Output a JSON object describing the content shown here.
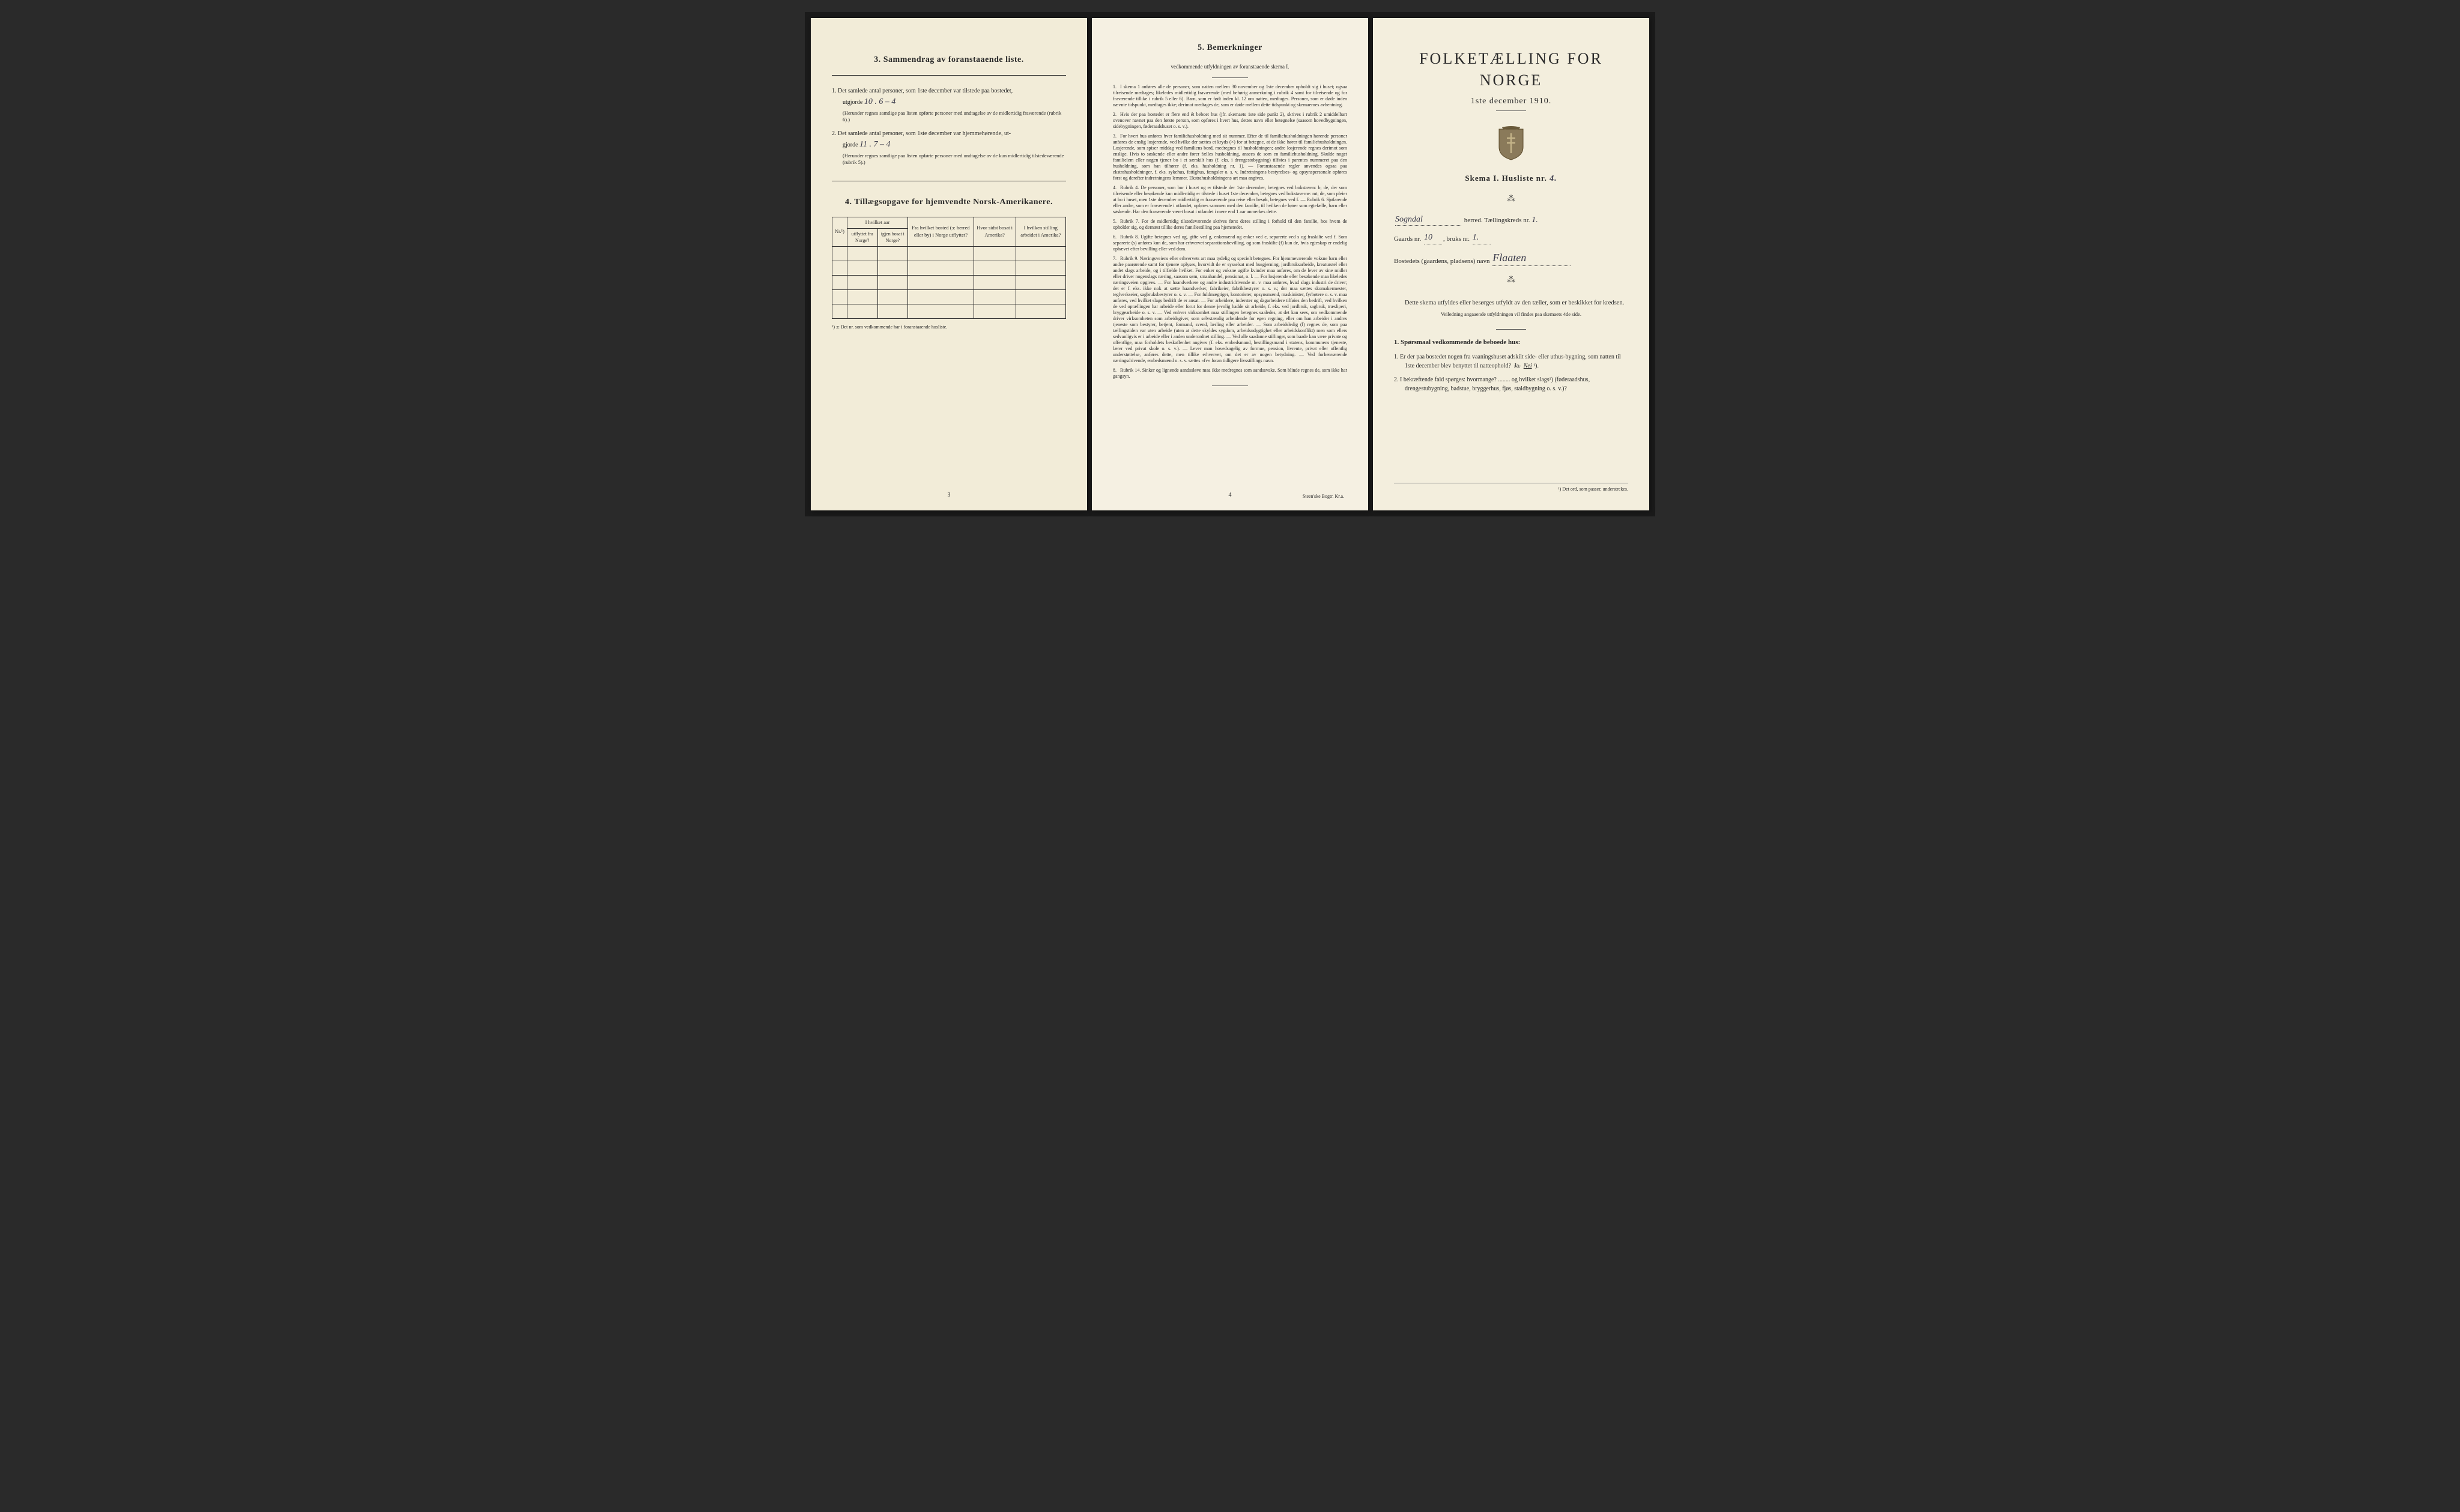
{
  "colors": {
    "paper_left": "#f2ecd8",
    "paper_center": "#f5f0e2",
    "paper_right": "#f3eedd",
    "ink": "#2a2a2a",
    "handwriting": "#3a3a4a",
    "background": "#2a2a2a"
  },
  "typography": {
    "body_font": "Georgia, Times New Roman, serif",
    "handwritten_font": "Brush Script MT, cursive",
    "main_title_size_pt": 26,
    "section_title_size_pt": 14,
    "body_size_pt": 10,
    "dense_size_pt": 8
  },
  "left": {
    "section3": {
      "title": "3.   Sammendrag av foranstaaende liste.",
      "item1_pre": "1.  Det samlede antal personer, som 1ste december var tilstede paa bostedet,",
      "item1_label": "utgjorde",
      "item1_value": "10 . 6 – 4",
      "item1_note": "(Herunder regnes samtlige paa listen opførte personer med undtagelse av de midlertidig fraværende (rubrik 6).)",
      "item2_pre": "2.  Det samlede antal personer, som 1ste december var hjemmehørende, ut-",
      "item2_label": "gjorde",
      "item2_value": "11 . 7 – 4",
      "item2_note": "(Herunder regnes samtlige paa listen opførte personer med undtagelse av de kun midlertidig tilstedeværende (rubrik 5).)"
    },
    "section4": {
      "title": "4.   Tillægsopgave for hjemvendte Norsk-Amerikanere.",
      "headers": {
        "col0": "Nr.¹)",
        "aar_group": "I hvilket aar",
        "aar_a": "utflyttet fra Norge?",
        "aar_b": "igjen bosat i Norge?",
        "col3": "Fra hvilket bosted (ɔ: herred eller by) i Norge utflyttet?",
        "col4": "Hvor sidst bosat i Amerika?",
        "col5": "I hvilken stilling arbeidet i Amerika?"
      },
      "rows": 5,
      "footnote": "¹) ɔ: Det nr. som vedkommende har i foranstaaende husliste."
    },
    "page_number": "3"
  },
  "center": {
    "title": "5.   Bemerkninger",
    "subtitle": "vedkommende utfyldningen av foranstaaende skema I.",
    "items": [
      "I skema 1 anføres alle de personer, som natten mellem 30 november og 1ste december opholdt sig i huset; ogsaa tilreisende medtages; likeledes midlertidig fraværende (med behørig anmerkning i rubrik 4 samt for tilreisende og for fraværende tillike i rubrik 5 eller 6). Barn, som er født inden kl. 12 om natten, medtages. Personer, som er døde inden nævnte tidspunkt, medtages ikke; derimot medtages de, som er døde mellem dette tidspunkt og skemaernes avhentning.",
      "Hvis der paa bostedet er flere end ét beboet hus (jfr. skemaets 1ste side punkt 2), skrives i rubrik 2 umiddelbart ovenover navnet paa den første person, som opføres i hvert hus, dettes navn eller betegnelse (saasom hovedbygningen, sidebygningen, føderaadshuset o. s. v.).",
      "For hvert hus anføres hver familiehusholdning med sit nummer. Efter de til familiehusholdningen hørende personer anføres de enslig losjerende, ved hvilke der sættes et kryds (×) for at betegne, at de ikke hører til familiehusholdningen. Losjerende, som spiser middag ved familiens bord, medregnes til husholdningen; andre losjerende regnes derimot som enslige. Hvis to søskende eller andre fører fælles husholdning, ansees de som en familiehusholdning. Skulde noget familielem eller nogen tjener bo i et særskilt hus (f. eks. i drengestubygning) tilføies i parentes nummeret paa den husholdning, som han tilhører (f. eks. husholdning nr. 1). — Foranstaaende regler anvendes ogsaa paa ekstrahusholdninger, f. eks. sykehus, fattighus, fængsler o. s. v. Indretningens bestyrelses- og opsynspersonale opføres først og derefter indretningens lemmer. Ekstrahusholdningens art maa angives.",
      "Rubrik 4. De personer, som bor i huset og er tilstede der 1ste december, betegnes ved bokstaven: b; de, der som tilreisende eller besøkende kun midlertidig er tilstede i huset 1ste december, betegnes ved bokstaverne: mt; de, som pleier at bo i huset, men 1ste december midlertidig er fraværende paa reise eller besøk, betegnes ved f. — Rubrik 6. Sjøfarende eller andre, som er fraværende i utlandet, opføres sammen med den familie, til hvilken de hører som egtefælle, barn eller søskende. Har den fraværende været bosat i utlandet i mere end 1 aar anmerkes dette.",
      "Rubrik 7. For de midlertidig tilstedeværende skrives først deres stilling i forhold til den familie, hos hvem de opholder sig, og dernæst tillike deres familiestilling paa hjemstedet.",
      "Rubrik 8. Ugifte betegnes ved ug, gifte ved g, enkemænd og enker ved e, separerte ved s og fraskilte ved f. Som separerte (s) anføres kun de, som har erhvervet separationsbevilling, og som fraskilte (f) kun de, hvis egteskap er endelig ophævet efter bevilling eller ved dom.",
      "Rubrik 9. Næringsveiens eller erhvervets art maa tydelig og specielt betegnes. For hjemmeværende voksne barn eller andre paarørende samt for tjenere oplyses, hvorvidt de er sysselsat med husgjerning, jordbruksarbeide, kreaturstel eller andet slags arbeide, og i tilfælde hvilket. For enker og voksne ugifte kvinder maa anføres, om de lever av sine midler eller driver nogenslags næring, saasom søm, smaahandel, pensionat, o. l. — For losjerende eller besøkende maa likeledes næringsveien opgives. — For haandverkere og andre industridrivende m. v. maa anføres, hvad slags industri de driver; det er f. eks. ikke nok at sætte haandverker, fabrikeier, fabrikbestyrer o. s. v.; der maa sættes skomakermester, teglverkseier, sagbruksbestyrer o. s. v. — For fuldmægtiger, kontorister, opsynsmænd, maskinister, fyrbøtere o. s. v. maa anføres, ved hvilket slags bedrift de er ansat. — For arbeidere, inderster og dagarbeidere tilføies den bedrift, ved hvilken de ved optællingen har arbeide eller forut for denne jevnlig hadde sit arbeide, f. eks. ved jordbruk, sagbruk, træsliperi, bryggearbeide o. s. v. — Ved enhver virksomhet maa stillingen betegnes saaledes, at det kan sees, om vedkommende driver virksomheten som arbeidsgiver, som selvstændig arbeidende for egen regning, eller om han arbeider i andres tjeneste som bestyrer, betjent, formand, svend, lærling eller arbeider. — Som arbeidsledig (l) regnes de, som paa tællingstiden var uten arbeide (uten at dette skyldes sygdom, arbeidsudygtighet eller arbeidskonflikt) men som ellers sedvanligvis er i arbeide eller i anden underordnet stilling. — Ved alle saadanne stillinger, som baade kan være private og offentlige, maa forholdets beskaffenhet angives (f. eks. embedsmand, bestillingsmand i statens, kommunens tjeneste, lærer ved privat skole o. s. v.). — Lever man hovedsagelig av formue, pension, livrente, privat eller offentlig understøttelse, anføres dette, men tillike erhvervet, om det er av nogen betydning. — Ved forhenværende næringsdrivende, embedsmænd o. s. v. sættes «fv» foran tidligere livsstillings navn.",
      "Rubrik 14. Sinker og lignende aandssløve maa ikke medregnes som aandssvake. Som blinde regnes de, som ikke har gangsyn."
    ],
    "page_number": "4",
    "printer": "Steen'ske Bogtr.  Kr.a."
  },
  "right": {
    "main_title": "FOLKETÆLLING FOR NORGE",
    "date": "1ste december 1910.",
    "skema_label": "Skema I.   Husliste nr.",
    "skema_nr": "4.",
    "herred_label": "herred.   Tællingskreds nr.",
    "herred_name": "Sogndal",
    "kreds_nr": "1.",
    "gaards_label": "Gaards nr.",
    "gaards_nr": "10",
    "bruks_label": "bruks nr.",
    "bruks_nr": "1.",
    "bosted_label": "Bostedets (gaardens, pladsens) navn",
    "bosted_name": "Flaaten",
    "intro": "Dette skema utfyldes eller besørges utfyldt av den tæller, som er beskikket for kredsen.",
    "intro_small": "Veiledning angaaende utfyldningen vil findes paa skemaets 4de side.",
    "q_heading": "1. Spørsmaal vedkommende de beboede hus:",
    "q1": "1.  Er der paa bostedet nogen fra vaaningshuset adskilt side- eller uthus-bygning, som natten til 1ste december blev benyttet til natteophold?",
    "q1_ja": "Ja.",
    "q1_nei": "Nei",
    "q1_sup": "¹).",
    "q2": "2.  I bekræftende fald spørges: hvormange? ........ og hvilket slags¹) (føderaadshus, drengestubygning, badstue, bryggerhus, fjøs, staldbygning o. s. v.)?",
    "footnote": "¹) Det ord, som passer, understrekes."
  }
}
